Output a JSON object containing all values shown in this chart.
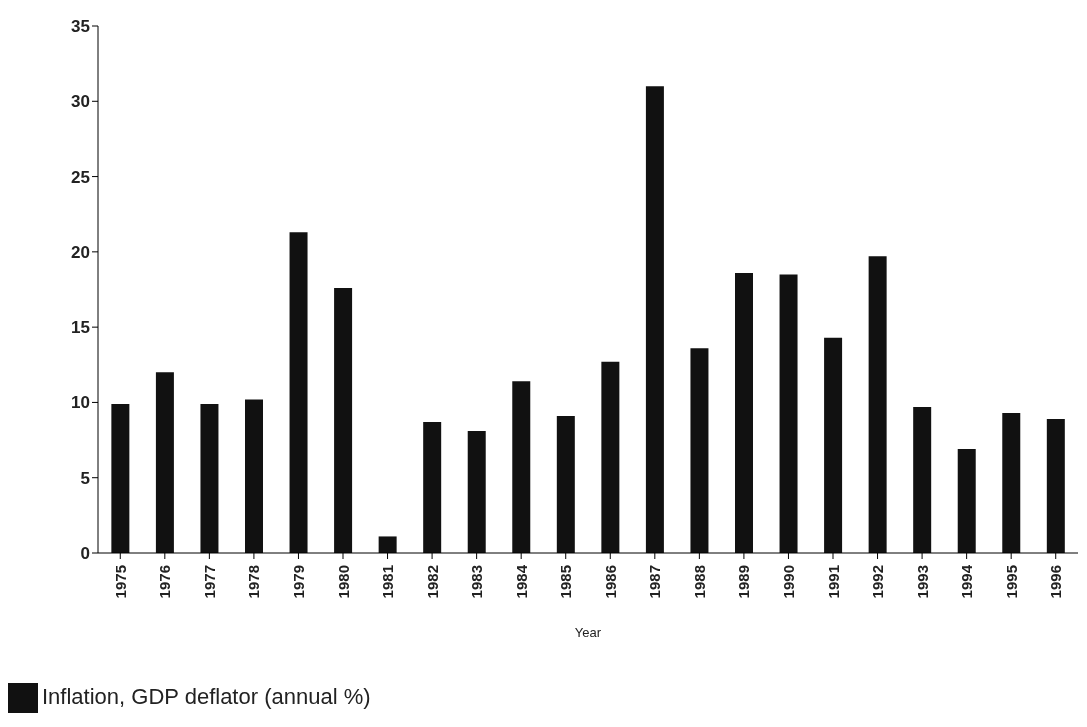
{
  "chart_data": {
    "type": "bar",
    "xlabel": "Year",
    "categories": [
      "1975",
      "1976",
      "1977",
      "1978",
      "1979",
      "1980",
      "1981",
      "1982",
      "1983",
      "1984",
      "1985",
      "1986",
      "1987",
      "1988",
      "1989",
      "1990",
      "1991",
      "1992",
      "1993",
      "1994",
      "1995",
      "1996"
    ],
    "series": [
      {
        "name": "Inflation, GDP deflator (annual %)",
        "color": "#111111",
        "values": [
          9.9,
          12.0,
          9.9,
          10.2,
          21.3,
          17.6,
          1.1,
          8.7,
          8.1,
          11.4,
          9.1,
          12.7,
          31.0,
          13.6,
          18.6,
          18.5,
          14.3,
          19.7,
          9.7,
          6.9,
          9.3,
          8.9
        ]
      }
    ],
    "ylim": [
      0,
      35
    ],
    "yticks": [
      0,
      5,
      10,
      15,
      20,
      25,
      30,
      35
    ],
    "grid": false,
    "legend": "bottom left"
  }
}
